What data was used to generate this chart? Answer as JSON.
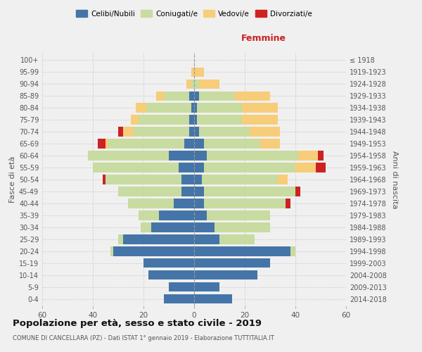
{
  "age_groups": [
    "0-4",
    "5-9",
    "10-14",
    "15-19",
    "20-24",
    "25-29",
    "30-34",
    "35-39",
    "40-44",
    "45-49",
    "50-54",
    "55-59",
    "60-64",
    "65-69",
    "70-74",
    "75-79",
    "80-84",
    "85-89",
    "90-94",
    "95-99",
    "100+"
  ],
  "birth_years": [
    "2014-2018",
    "2009-2013",
    "2004-2008",
    "1999-2003",
    "1994-1998",
    "1989-1993",
    "1984-1988",
    "1979-1983",
    "1974-1978",
    "1969-1973",
    "1964-1968",
    "1959-1963",
    "1954-1958",
    "1949-1953",
    "1944-1948",
    "1939-1943",
    "1934-1938",
    "1929-1933",
    "1924-1928",
    "1919-1923",
    "≤ 1918"
  ],
  "males": {
    "celibe": [
      12,
      10,
      18,
      20,
      32,
      28,
      17,
      14,
      8,
      5,
      5,
      6,
      10,
      4,
      2,
      2,
      1,
      2,
      0,
      0,
      0
    ],
    "coniugato": [
      0,
      0,
      0,
      0,
      1,
      2,
      4,
      8,
      18,
      25,
      30,
      34,
      32,
      30,
      22,
      20,
      18,
      10,
      1,
      0,
      0
    ],
    "vedovo": [
      0,
      0,
      0,
      0,
      0,
      0,
      0,
      0,
      0,
      0,
      0,
      0,
      0,
      1,
      4,
      3,
      4,
      3,
      2,
      1,
      0
    ],
    "divorziato": [
      0,
      0,
      0,
      0,
      0,
      0,
      0,
      0,
      0,
      0,
      1,
      0,
      0,
      3,
      2,
      0,
      0,
      0,
      0,
      0,
      0
    ]
  },
  "females": {
    "nubile": [
      15,
      10,
      25,
      30,
      38,
      10,
      8,
      5,
      4,
      4,
      3,
      4,
      5,
      4,
      2,
      1,
      1,
      2,
      0,
      0,
      0
    ],
    "coniugata": [
      0,
      0,
      0,
      0,
      2,
      14,
      22,
      25,
      32,
      36,
      30,
      36,
      36,
      22,
      20,
      18,
      18,
      14,
      2,
      0,
      0
    ],
    "vedova": [
      0,
      0,
      0,
      0,
      0,
      0,
      0,
      0,
      0,
      0,
      4,
      8,
      8,
      8,
      12,
      14,
      14,
      14,
      8,
      4,
      0
    ],
    "divorziata": [
      0,
      0,
      0,
      0,
      0,
      0,
      0,
      0,
      2,
      2,
      0,
      4,
      2,
      0,
      0,
      0,
      0,
      0,
      0,
      0,
      0
    ]
  },
  "colors": {
    "celibe": "#4575a8",
    "coniugato": "#c8dba0",
    "vedovo": "#f7cd7a",
    "divorziato": "#cc2222"
  },
  "title": "Popolazione per età, sesso e stato civile - 2019",
  "subtitle": "COMUNE DI CANCELLARA (PZ) - Dati ISTAT 1° gennaio 2019 - Elaborazione TUTTITALIA.IT",
  "xlabel_right": "Femmine",
  "ylabel_left": "Fasce di età",
  "ylabel_right": "Anni di nascita",
  "xlim": 60,
  "background_color": "#f0f0f0",
  "legend_labels": [
    "Celibi/Nubili",
    "Coniugati/e",
    "Vedovi/e",
    "Divorziati/e"
  ]
}
